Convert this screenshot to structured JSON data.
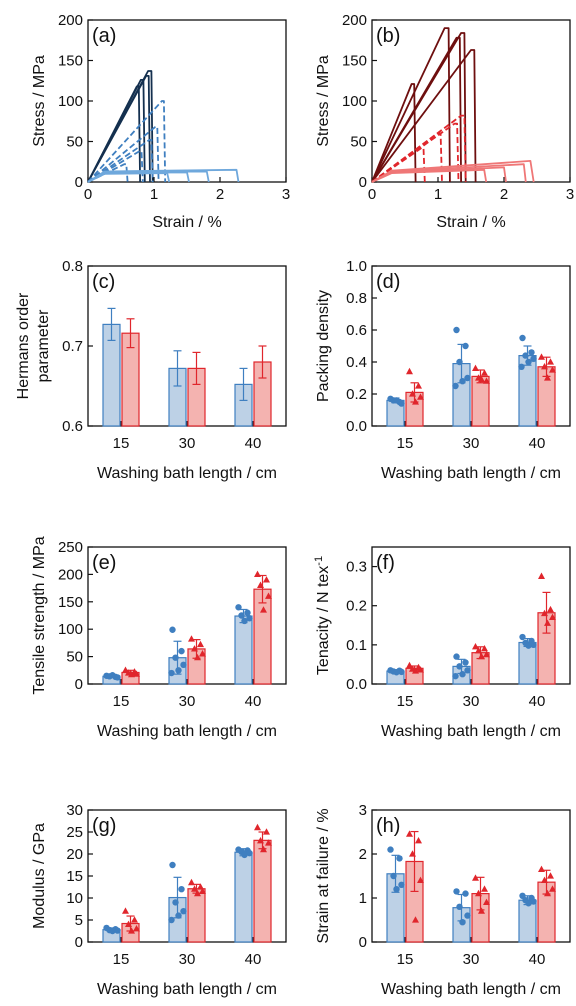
{
  "colors": {
    "blue": "#3f7fc0",
    "blue_fill": "#bdd1e6",
    "red": "#e0262c",
    "red_fill": "#f4b3b0",
    "navy": "#14304f",
    "darkred": "#6e0f0f",
    "light_blue": "#6fa8dc",
    "light_red": "#ef7777",
    "axis": "#111111"
  },
  "chart_data": [
    {
      "id": "a",
      "panel_label": "(a)",
      "type": "line",
      "xlabel": "Strain / %",
      "ylabel": "Stress / MPa",
      "xlim": [
        0,
        3
      ],
      "ylim": [
        0,
        200
      ],
      "xticks": [
        0,
        1,
        2,
        3
      ],
      "yticks": [
        0,
        50,
        100,
        150,
        200
      ],
      "series": [
        {
          "color": "navy",
          "style": "solid",
          "x": [
            0,
            0.91,
            0.96,
            0.98
          ],
          "y": [
            0,
            137,
            137,
            0
          ]
        },
        {
          "color": "navy",
          "style": "solid",
          "x": [
            0,
            0.88,
            0.92,
            0.94
          ],
          "y": [
            0,
            131,
            131,
            0
          ]
        },
        {
          "color": "navy",
          "style": "solid",
          "x": [
            0,
            0.8,
            0.84,
            0.86
          ],
          "y": [
            0,
            126,
            126,
            0
          ]
        },
        {
          "color": "navy",
          "style": "solid",
          "x": [
            0,
            0.74,
            0.77,
            0.79
          ],
          "y": [
            0,
            118,
            118,
            0
          ]
        },
        {
          "color": "blue",
          "style": "dashed",
          "x": [
            0,
            1.12,
            1.15,
            1.17
          ],
          "y": [
            0,
            100,
            100,
            0
          ]
        },
        {
          "color": "blue",
          "style": "dashed",
          "x": [
            0,
            1.02,
            1.05,
            1.07
          ],
          "y": [
            0,
            68,
            68,
            0
          ]
        },
        {
          "color": "blue",
          "style": "dashed",
          "x": [
            0,
            0.93,
            0.96,
            0.98
          ],
          "y": [
            0,
            52,
            52,
            0
          ]
        },
        {
          "color": "blue",
          "style": "dashed",
          "x": [
            0,
            0.78,
            0.81,
            0.83
          ],
          "y": [
            0,
            38,
            38,
            0
          ]
        },
        {
          "color": "blue",
          "style": "dashed",
          "x": [
            0,
            0.55,
            0.58,
            0.6
          ],
          "y": [
            0,
            22,
            22,
            0
          ]
        },
        {
          "color": "light_blue",
          "style": "solid",
          "x": [
            0,
            0.25,
            2.25,
            2.28
          ],
          "y": [
            0,
            13,
            15,
            0
          ]
        },
        {
          "color": "light_blue",
          "style": "solid",
          "x": [
            0,
            0.25,
            1.8,
            1.83
          ],
          "y": [
            0,
            12,
            13,
            0
          ]
        },
        {
          "color": "light_blue",
          "style": "solid",
          "x": [
            0,
            0.25,
            1.5,
            1.53
          ],
          "y": [
            0,
            11,
            12,
            0
          ]
        },
        {
          "color": "light_blue",
          "style": "solid",
          "x": [
            0,
            0.25,
            1.2,
            1.23
          ],
          "y": [
            0,
            10,
            11,
            0
          ]
        }
      ]
    },
    {
      "id": "b",
      "panel_label": "(b)",
      "type": "line",
      "xlabel": "Strain / %",
      "ylabel": "Stress / MPa",
      "xlim": [
        0,
        3
      ],
      "ylim": [
        0,
        200
      ],
      "xticks": [
        0,
        1,
        2,
        3
      ],
      "yticks": [
        0,
        50,
        100,
        150,
        200
      ],
      "series": [
        {
          "color": "darkred",
          "style": "solid",
          "x": [
            0,
            1.1,
            1.16,
            1.18
          ],
          "y": [
            0,
            190,
            190,
            0
          ]
        },
        {
          "color": "darkred",
          "style": "solid",
          "x": [
            0,
            1.35,
            1.4,
            1.42
          ],
          "y": [
            0,
            184,
            184,
            0
          ]
        },
        {
          "color": "darkred",
          "style": "solid",
          "x": [
            0,
            1.28,
            1.33,
            1.35
          ],
          "y": [
            0,
            178,
            178,
            0
          ]
        },
        {
          "color": "darkred",
          "style": "solid",
          "x": [
            0,
            1.5,
            1.55,
            1.57
          ],
          "y": [
            0,
            163,
            163,
            0
          ]
        },
        {
          "color": "darkred",
          "style": "solid",
          "x": [
            0,
            0.6,
            0.64,
            0.66
          ],
          "y": [
            0,
            121,
            121,
            0
          ]
        },
        {
          "color": "red",
          "style": "dashed",
          "x": [
            0,
            1.35,
            1.4,
            1.42
          ],
          "y": [
            0,
            82,
            82,
            0
          ]
        },
        {
          "color": "red",
          "style": "dashed",
          "x": [
            0,
            1.25,
            1.29,
            1.31
          ],
          "y": [
            0,
            72,
            72,
            0
          ]
        },
        {
          "color": "red",
          "style": "dashed",
          "x": [
            0,
            1.0,
            1.04,
            1.06
          ],
          "y": [
            0,
            60,
            60,
            0
          ]
        },
        {
          "color": "red",
          "style": "dashed",
          "x": [
            0,
            0.75,
            0.78,
            0.8
          ],
          "y": [
            0,
            42,
            42,
            0
          ]
        },
        {
          "color": "light_red",
          "style": "solid",
          "x": [
            0,
            0.3,
            2.4,
            2.45
          ],
          "y": [
            0,
            14,
            26,
            0
          ]
        },
        {
          "color": "light_red",
          "style": "solid",
          "x": [
            0,
            0.3,
            2.3,
            2.33
          ],
          "y": [
            0,
            13,
            22,
            0
          ]
        },
        {
          "color": "light_red",
          "style": "solid",
          "x": [
            0,
            0.3,
            2.0,
            2.03
          ],
          "y": [
            0,
            12,
            18,
            0
          ]
        },
        {
          "color": "light_red",
          "style": "solid",
          "x": [
            0,
            0.3,
            1.7,
            1.73
          ],
          "y": [
            0,
            11,
            15,
            0
          ]
        }
      ]
    },
    {
      "id": "c",
      "panel_label": "(c)",
      "type": "bar",
      "xlabel": "Washing bath length / cm",
      "ylabel": "Hermans order parameter",
      "categories": [
        "15",
        "30",
        "40"
      ],
      "ylim": [
        0.6,
        0.8
      ],
      "yticks": [
        "0.6",
        "0.7",
        "0.8"
      ],
      "series": [
        {
          "color": "blue",
          "values": [
            0.727,
            0.672,
            0.652
          ],
          "errors": [
            0.02,
            0.022,
            0.02
          ],
          "points": [
            [],
            [],
            []
          ]
        },
        {
          "color": "red",
          "values": [
            0.716,
            0.672,
            0.68
          ],
          "errors": [
            0.018,
            0.02,
            0.02
          ],
          "points": [
            [],
            [],
            []
          ]
        }
      ]
    },
    {
      "id": "d",
      "panel_label": "(d)",
      "type": "bar",
      "xlabel": "Washing bath length / cm",
      "ylabel": "Packing density",
      "categories": [
        "15",
        "30",
        "40"
      ],
      "ylim": [
        0,
        1
      ],
      "yticks": [
        "0.0",
        "0.2",
        "0.4",
        "0.6",
        "0.8",
        "1.0"
      ],
      "series": [
        {
          "color": "blue",
          "values": [
            0.16,
            0.39,
            0.44
          ],
          "errors": [
            0.015,
            0.12,
            0.06
          ],
          "points": [
            [
              0.17,
              0.15,
              0.16,
              0.14,
              0.16
            ],
            [
              0.6,
              0.5,
              0.4,
              0.3,
              0.28,
              0.25
            ],
            [
              0.55,
              0.46,
              0.44,
              0.42,
              0.4,
              0.37
            ]
          ]
        },
        {
          "color": "red",
          "values": [
            0.21,
            0.31,
            0.37
          ],
          "errors": [
            0.06,
            0.04,
            0.06
          ],
          "points": [
            [
              0.34,
              0.25,
              0.2,
              0.18,
              0.15
            ],
            [
              0.36,
              0.33,
              0.3,
              0.28,
              0.29
            ],
            [
              0.43,
              0.4,
              0.37,
              0.35,
              0.3
            ]
          ]
        }
      ]
    },
    {
      "id": "e",
      "panel_label": "(e)",
      "type": "bar",
      "xlabel": "Washing bath length / cm",
      "ylabel": "Tensile strength / MPa",
      "categories": [
        "15",
        "30",
        "40"
      ],
      "ylim": [
        0,
        250
      ],
      "yticks": [
        "0",
        "50",
        "100",
        "150",
        "200",
        "250"
      ],
      "series": [
        {
          "color": "blue",
          "values": [
            14,
            48,
            124
          ],
          "errors": [
            2,
            30,
            12
          ],
          "points": [
            [
              15,
              13,
              14,
              12,
              16
            ],
            [
              99,
              60,
              48,
              35,
              25,
              20
            ],
            [
              140,
              130,
              125,
              120,
              115
            ]
          ]
        },
        {
          "color": "red",
          "values": [
            21,
            64,
            173
          ],
          "errors": [
            4,
            17,
            25
          ],
          "points": [
            [
              25,
              22,
              20,
              18,
              17
            ],
            [
              82,
              72,
              64,
              55,
              48
            ],
            [
              200,
              190,
              180,
              160,
              135
            ]
          ]
        }
      ]
    },
    {
      "id": "f",
      "panel_label": "(f)",
      "type": "bar",
      "xlabel": "Washing bath length / cm",
      "ylabel": "Tenacity / N tex",
      "ylabel_sup": "-1",
      "categories": [
        "15",
        "30",
        "40"
      ],
      "ylim": [
        0,
        0.35
      ],
      "yticks": [
        "0.0",
        "0.1",
        "0.2",
        "0.3"
      ],
      "series": [
        {
          "color": "blue",
          "values": [
            0.033,
            0.045,
            0.106
          ],
          "errors": [
            0.003,
            0.018,
            0.01
          ],
          "points": [
            [
              0.035,
              0.034,
              0.032,
              0.031,
              0.03
            ],
            [
              0.07,
              0.055,
              0.045,
              0.035,
              0.025,
              0.02
            ],
            [
              0.12,
              0.11,
              0.105,
              0.1,
              0.098
            ]
          ]
        },
        {
          "color": "red",
          "values": [
            0.04,
            0.08,
            0.182
          ],
          "errors": [
            0.006,
            0.015,
            0.052
          ],
          "points": [
            [
              0.047,
              0.042,
              0.038,
              0.036,
              0.033
            ],
            [
              0.095,
              0.09,
              0.085,
              0.075,
              0.07
            ],
            [
              0.275,
              0.19,
              0.18,
              0.17,
              0.155
            ]
          ]
        }
      ]
    },
    {
      "id": "g",
      "panel_label": "(g)",
      "type": "bar",
      "xlabel": "Washing bath length / cm",
      "ylabel": "Modulus / GPa",
      "categories": [
        "15",
        "30",
        "40"
      ],
      "ylim": [
        0,
        30
      ],
      "yticks": [
        "0",
        "5",
        "10",
        "15",
        "20",
        "25",
        "30"
      ],
      "series": [
        {
          "color": "blue",
          "values": [
            2.8,
            10.1,
            20.4
          ],
          "errors": [
            0.4,
            4.6,
            0.8
          ],
          "points": [
            [
              3.2,
              2.9,
              2.7,
              2.6,
              2.5
            ],
            [
              17.5,
              12,
              9,
              7,
              6,
              5
            ],
            [
              21,
              20.8,
              20.5,
              20.2,
              19.8
            ]
          ]
        },
        {
          "color": "red",
          "values": [
            4.2,
            12.1,
            23.1
          ],
          "errors": [
            1.7,
            1.0,
            1.9
          ],
          "points": [
            [
              7,
              5,
              4,
              3,
              2.5
            ],
            [
              13.5,
              12.5,
              12,
              11.5,
              11
            ],
            [
              26,
              25,
              23,
              22.5,
              21
            ]
          ]
        }
      ]
    },
    {
      "id": "h",
      "panel_label": "(h)",
      "type": "bar",
      "xlabel": "Washing bath length / cm",
      "ylabel": "Strain at failure / %",
      "categories": [
        "15",
        "30",
        "40"
      ],
      "ylim": [
        0,
        3
      ],
      "yticks": [
        "0",
        "1",
        "2",
        "3"
      ],
      "series": [
        {
          "color": "blue",
          "values": [
            1.55,
            0.78,
            0.95
          ],
          "errors": [
            0.42,
            0.3,
            0.1
          ],
          "points": [
            [
              2.1,
              1.9,
              1.5,
              1.3,
              1.2
            ],
            [
              1.15,
              1.1,
              0.8,
              0.6,
              0.45
            ],
            [
              1.05,
              1.0,
              0.95,
              0.92,
              0.88
            ]
          ]
        },
        {
          "color": "red",
          "values": [
            1.83,
            1.1,
            1.36
          ],
          "errors": [
            0.68,
            0.37,
            0.27
          ],
          "points": [
            [
              2.45,
              2.3,
              2.0,
              1.4,
              0.5
            ],
            [
              1.45,
              1.2,
              1.1,
              0.9,
              0.7
            ],
            [
              1.65,
              1.5,
              1.4,
              1.2,
              1.1
            ]
          ]
        }
      ]
    }
  ]
}
